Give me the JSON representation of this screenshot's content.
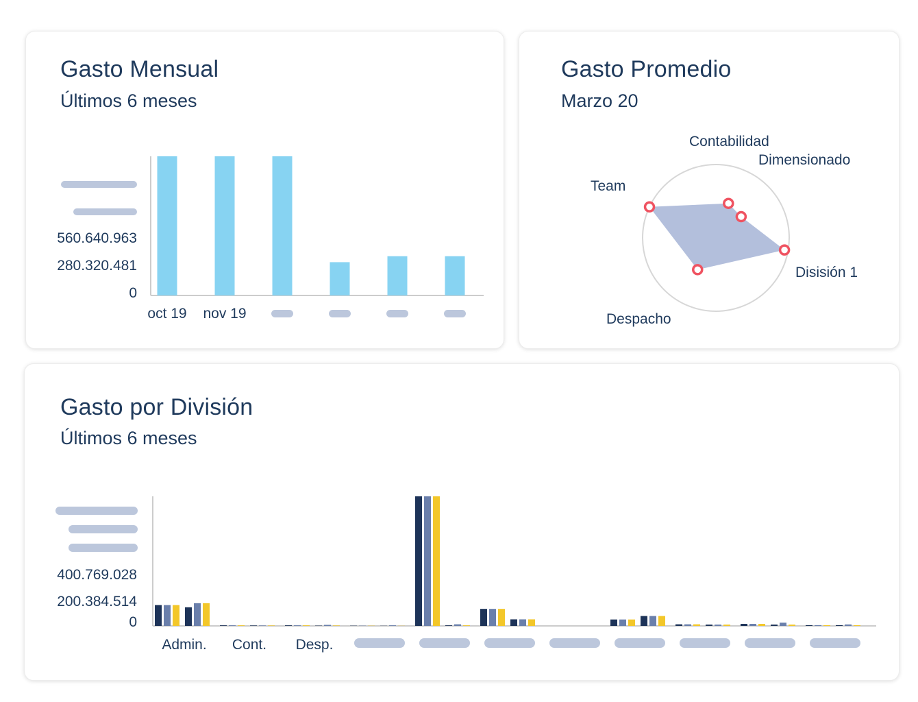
{
  "colors": {
    "bar_light": "#87d3f2",
    "navy": "#1d3358",
    "slate": "#6a7fab",
    "yellow": "#f3c72a",
    "placeholder": "#bcc7dc",
    "axis": "#cccccc",
    "radar_fill": "#b3bfdc",
    "radar_marker": "#ef5361",
    "text": "#1f3a5c"
  },
  "monthly": {
    "title": "Gasto Mensual",
    "subtitle": "Últimos 6 meses",
    "y_ticks": [
      "560.640.963",
      "280.320.481",
      "0"
    ],
    "chart_data": {
      "type": "bar",
      "categories": [
        "oct 19",
        "nov 19",
        "",
        "",
        "",
        ""
      ],
      "values": [
        1400000000,
        1400000000,
        1400000000,
        335000000,
        395000000,
        395000000
      ],
      "ylim": [
        0,
        1400000000
      ],
      "xlabel": "",
      "ylabel": ""
    }
  },
  "average": {
    "title": "Gasto Promedio",
    "subtitle": "Marzo 20",
    "chart_data": {
      "type": "radar",
      "axes": [
        "Contabilidad",
        "Dimensionado",
        "Disisión 1",
        "Despacho",
        "Team"
      ],
      "values": [
        0.5,
        0.45,
        0.95,
        0.5,
        1.0
      ],
      "range": [
        0,
        1
      ]
    }
  },
  "division": {
    "title": "Gasto por División",
    "subtitle": "Últimos 6 meses",
    "y_ticks": [
      "400.769.028",
      "200.384.514",
      "0"
    ],
    "chart_data": {
      "type": "bar",
      "categories": [
        "Admin.",
        "Cont.",
        "Desp.",
        "",
        "",
        "",
        "",
        "",
        "",
        "",
        ""
      ],
      "values_by_category": [
        [
          143000000,
          143000000,
          143000000,
          128000000,
          156000000,
          156000000
        ],
        [
          4000000,
          4000000,
          4000000,
          3000000,
          3000000,
          3000000
        ],
        [
          4000000,
          4000000,
          4000000,
          2000000,
          7000000,
          3000000
        ],
        [
          1500000,
          1500000,
          1500000,
          1000000,
          4000000,
          1000000
        ],
        [
          890000000,
          890000000,
          890000000,
          4000000,
          11000000,
          4000000
        ],
        [
          117000000,
          117000000,
          117000000,
          45000000,
          45000000,
          45000000
        ],
        [
          0,
          0,
          0,
          0,
          0,
          0
        ],
        [
          44000000,
          44000000,
          44000000,
          68000000,
          68000000,
          68000000
        ],
        [
          11000000,
          11000000,
          11000000,
          9000000,
          9000000,
          9000000
        ],
        [
          14000000,
          14000000,
          14000000,
          9000000,
          22000000,
          9000000
        ],
        [
          5000000,
          5000000,
          5000000,
          5000000,
          10000000,
          5000000
        ]
      ],
      "ylim": [
        0,
        890000000
      ],
      "xlabel": "",
      "ylabel": ""
    }
  }
}
